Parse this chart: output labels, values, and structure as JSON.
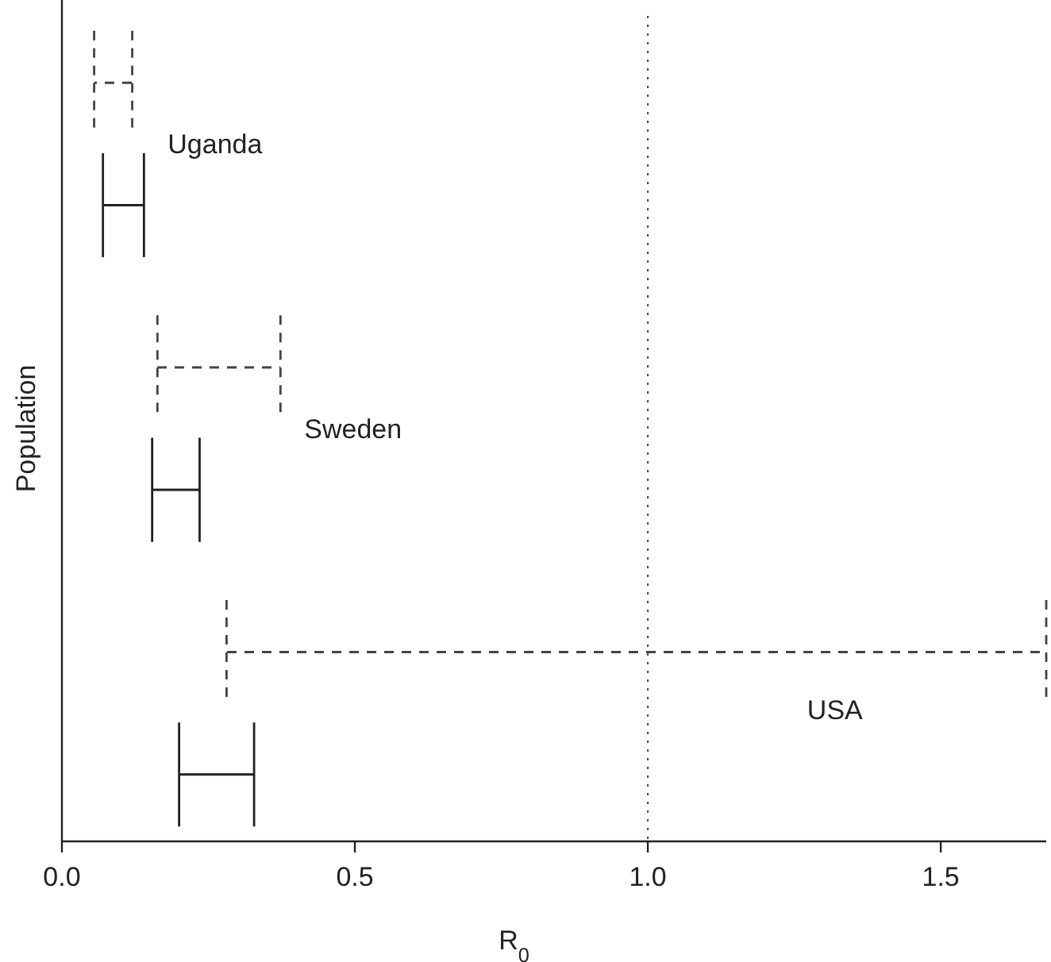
{
  "chart_data": {
    "type": "bar",
    "orientation": "horizontal",
    "xlabel": "R$_{0}$",
    "ylabel": "Population",
    "categories": [
      "Uganda",
      "Sweden",
      "USA"
    ],
    "series": [
      {
        "color": "#444444",
        "line_style": "dashed",
        "base": [
          0.055,
          0.163,
          0.281
        ],
        "values": [
          0.065,
          0.21,
          1.399
        ]
      },
      {
        "color": "#222222",
        "line_style": "solid",
        "base": [
          0.07,
          0.154,
          0.2
        ],
        "values": [
          0.07,
          0.081,
          0.128
        ]
      }
    ],
    "xlim": [
      0,
      1.68
    ],
    "xticks": [
      {
        "value": 0,
        "label": "0.0"
      },
      {
        "value": 0.5,
        "label": "0.5"
      },
      {
        "value": 1,
        "label": "1.0"
      },
      {
        "value": 1.5,
        "label": "1.5"
      }
    ],
    "ref_lines": [
      {
        "axis": "x",
        "value": 1,
        "line_style": "dotted",
        "color": "#444444"
      }
    ],
    "grid": false
  }
}
